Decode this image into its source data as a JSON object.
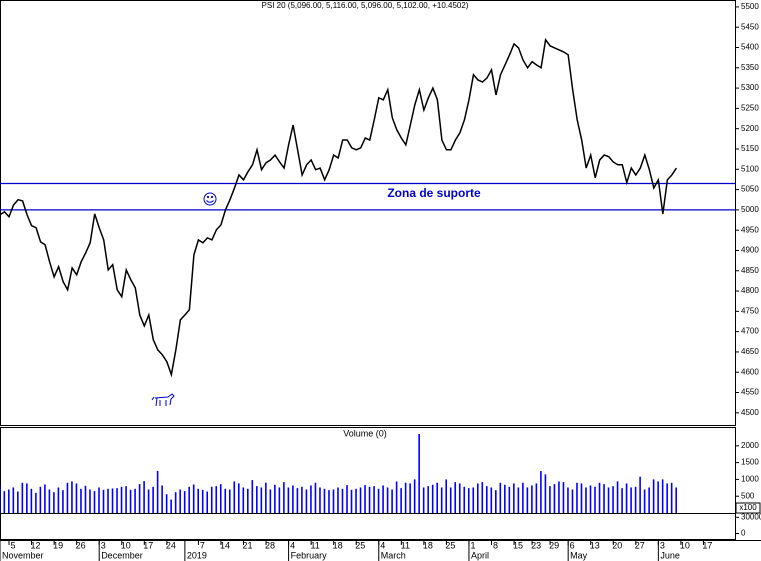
{
  "chart_data": [
    {
      "type": "line",
      "title": "PSI 20 (5,096.00, 5,116.00, 5,096.00, 5,102.00, +10.4502)",
      "series": [
        {
          "color": "#000000",
          "values": [
            4988,
            4995,
            4983,
            5012,
            5025,
            5022,
            4988,
            4961,
            4956,
            4921,
            4914,
            4872,
            4835,
            4860,
            4823,
            4803,
            4857,
            4840,
            4872,
            4894,
            4919,
            4990,
            4956,
            4926,
            4852,
            4865,
            4803,
            4786,
            4852,
            4828,
            4808,
            4741,
            4714,
            4741,
            4680,
            4655,
            4643,
            4626,
            4594,
            4655,
            4729,
            4741,
            4754,
            4889,
            4926,
            4919,
            4931,
            4926,
            4951,
            4963,
            5000,
            5025,
            5054,
            5086,
            5074,
            5094,
            5111,
            5148,
            5099,
            5116,
            5123,
            5135,
            5118,
            5103,
            5160,
            5209,
            5148,
            5086,
            5111,
            5123,
            5099,
            5103,
            5074,
            5099,
            5135,
            5128,
            5172,
            5172,
            5153,
            5148,
            5153,
            5177,
            5172,
            5222,
            5276,
            5271,
            5296,
            5227,
            5197,
            5177,
            5160,
            5209,
            5259,
            5296,
            5246,
            5276,
            5300,
            5271,
            5172,
            5148,
            5148,
            5172,
            5190,
            5222,
            5271,
            5333,
            5320,
            5315,
            5325,
            5345,
            5283,
            5333,
            5357,
            5382,
            5409,
            5399,
            5369,
            5350,
            5365,
            5357,
            5350,
            5419,
            5404,
            5399,
            5394,
            5389,
            5382,
            5296,
            5222,
            5172,
            5103,
            5135,
            5079,
            5123,
            5135,
            5131,
            5118,
            5111,
            5111,
            5067,
            5103,
            5086,
            5103,
            5135,
            5099,
            5054,
            5074,
            4990,
            5074,
            5086,
            5103
          ]
        }
      ],
      "hlines": [
        5065,
        5000
      ],
      "hline_color": "#0000cc",
      "annotation": "Zona de suporte",
      "ylim": [
        4470,
        5517
      ],
      "yticks": [
        4500,
        4550,
        4600,
        4650,
        4700,
        4750,
        4800,
        4850,
        4900,
        4950,
        5000,
        5050,
        5100,
        5150,
        5200,
        5250,
        5300,
        5350,
        5400,
        5450,
        5500
      ],
      "xlim": [
        0,
        163
      ],
      "xticks": [
        {
          "value": 2,
          "label": "5"
        },
        {
          "value": 7,
          "label": "12"
        },
        {
          "value": 12,
          "label": "19"
        },
        {
          "value": 17,
          "label": "26"
        },
        {
          "value": 22,
          "label": "3"
        },
        {
          "value": 27,
          "label": "10"
        },
        {
          "value": 32,
          "label": "17"
        },
        {
          "value": 37,
          "label": "24"
        },
        {
          "value": 44,
          "label": "7"
        },
        {
          "value": 49,
          "label": "14"
        },
        {
          "value": 54,
          "label": "21"
        },
        {
          "value": 59,
          "label": "28"
        },
        {
          "value": 64,
          "label": "4"
        },
        {
          "value": 69,
          "label": "11"
        },
        {
          "value": 74,
          "label": "18"
        },
        {
          "value": 79,
          "label": "25"
        },
        {
          "value": 84,
          "label": "4"
        },
        {
          "value": 89,
          "label": "11"
        },
        {
          "value": 94,
          "label": "18"
        },
        {
          "value": 99,
          "label": "25"
        },
        {
          "value": 104,
          "label": "1"
        },
        {
          "value": 109,
          "label": "8"
        },
        {
          "value": 114,
          "label": "15"
        },
        {
          "value": 118,
          "label": "23"
        },
        {
          "value": 122,
          "label": "29"
        },
        {
          "value": 126,
          "label": "6"
        },
        {
          "value": 131,
          "label": "13"
        },
        {
          "value": 136,
          "label": "20"
        },
        {
          "value": 141,
          "label": "27"
        },
        {
          "value": 146,
          "label": "3"
        },
        {
          "value": 151,
          "label": "10"
        },
        {
          "value": 156,
          "label": "17"
        }
      ],
      "xmonths": [
        {
          "value": 0,
          "label": "November"
        },
        {
          "value": 22,
          "label": "December"
        },
        {
          "value": 41,
          "label": "2019"
        },
        {
          "value": 64,
          "label": "February"
        },
        {
          "value": 84,
          "label": "March"
        },
        {
          "value": 104,
          "label": "April"
        },
        {
          "value": 126,
          "label": "May"
        },
        {
          "value": 146,
          "label": "June"
        }
      ]
    },
    {
      "type": "bar",
      "title": "Volume (0)",
      "unit_label": "x100",
      "color": "#0000ff",
      "values": [
        820,
        650,
        700,
        760,
        640,
        900,
        880,
        720,
        600,
        780,
        850,
        700,
        620,
        760,
        680,
        900,
        940,
        880,
        720,
        810,
        700,
        650,
        760,
        690,
        720,
        730,
        740,
        780,
        800,
        690,
        720,
        860,
        950,
        700,
        780,
        1250,
        820,
        560,
        400,
        620,
        700,
        650,
        780,
        850,
        720,
        690,
        640,
        780,
        800,
        860,
        720,
        700,
        940,
        880,
        760,
        720,
        980,
        800,
        760,
        900,
        700,
        840,
        760,
        920,
        760,
        820,
        740,
        780,
        700,
        820,
        900,
        760,
        720,
        680,
        700,
        760,
        720,
        830,
        690,
        720,
        760,
        830,
        780,
        800,
        720,
        820,
        760,
        700,
        940,
        740,
        900,
        880,
        1000,
        2350,
        760,
        800,
        840,
        900,
        760,
        1000,
        760,
        920,
        880,
        780,
        740,
        760,
        880,
        920,
        800,
        760,
        680,
        900,
        840,
        780,
        880,
        760,
        900,
        760,
        820,
        880,
        1250,
        1150,
        800,
        860,
        940,
        920,
        760,
        700,
        900,
        880,
        760,
        820,
        780,
        900,
        860,
        760,
        800,
        940,
        740,
        880,
        760,
        780,
        1080,
        700,
        760,
        1000,
        940,
        1000,
        880,
        900,
        760
      ],
      "ylim": [
        0,
        2560
      ],
      "yticks": [
        500,
        1000,
        1500,
        2000
      ]
    },
    {
      "type": "line",
      "ylim": [
        -12000,
        38000
      ],
      "yticks": [
        0,
        30000
      ]
    }
  ]
}
